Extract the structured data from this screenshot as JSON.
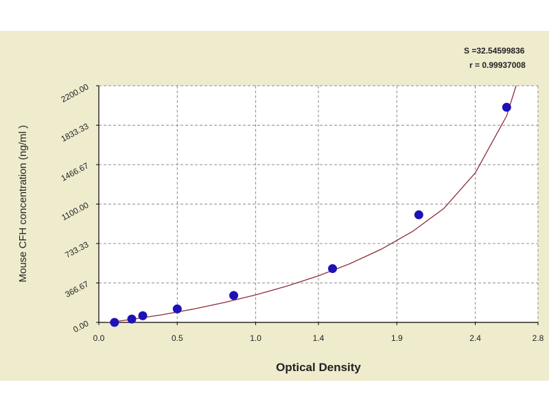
{
  "chart_data": {
    "type": "scatter",
    "title": "",
    "xlabel": "Optical Density",
    "ylabel": "Mouse CFH concentration (ng/ml )",
    "xlim": [
      0.0,
      2.8
    ],
    "ylim": [
      0.0,
      2200.0
    ],
    "x_ticks": [
      0.0,
      0.5,
      1.0,
      1.4,
      1.9,
      2.4,
      2.8
    ],
    "x_tick_labels": [
      "0.0",
      "0.5",
      "1.0",
      "1.4",
      "1.9",
      "2.4",
      "2.8"
    ],
    "y_ticks": [
      0.0,
      366.67,
      733.33,
      1100.0,
      1466.67,
      1833.33,
      2200.0
    ],
    "y_tick_labels": [
      "0.00",
      "366.67",
      "733.33",
      "1100.00",
      "1466.67",
      "1833.33",
      "2200.00"
    ],
    "grid": true,
    "series": [
      {
        "type": "scatter",
        "color": "#1d12b8",
        "x": [
          0.1,
          0.21,
          0.28,
          0.5,
          0.86,
          1.49,
          2.04,
          2.6
        ],
        "y": [
          0,
          31,
          62,
          125,
          250,
          500,
          1000,
          2000
        ]
      },
      {
        "type": "line",
        "color": "#8b2a36",
        "x": [
          0.0,
          0.2,
          0.4,
          0.6,
          0.8,
          1.0,
          1.2,
          1.4,
          1.6,
          1.8,
          2.0,
          2.2,
          2.4,
          2.6,
          2.66
        ],
        "y": [
          -12,
          26,
          70,
          123,
          185,
          256,
          338,
          433,
          545,
          680,
          845,
          1060,
          1390,
          1920,
          2200
        ]
      }
    ],
    "annotations": {
      "s_label": "S =32.54599836",
      "r_label": "r = 0.99937008"
    }
  },
  "colors": {
    "background": "#efebcd",
    "plot_background": "#ffffff",
    "axis": "#000000",
    "grid": "#8c8c8c"
  }
}
